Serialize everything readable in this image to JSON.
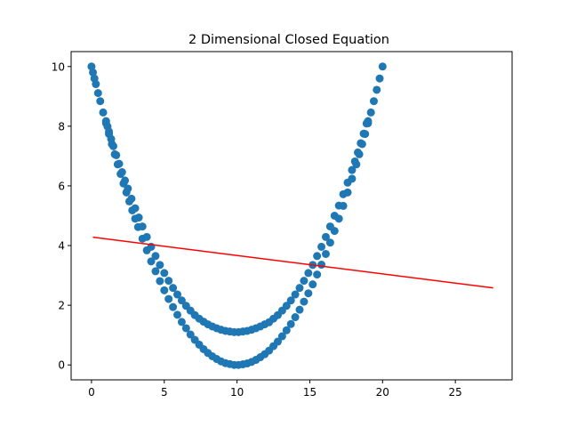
{
  "chart_data": {
    "type": "scatter",
    "title": "2 Dimensional Closed Equation",
    "xlabel": "",
    "ylabel": "",
    "xlim": [
      -1.4,
      28.9
    ],
    "ylim": [
      -0.5,
      10.5
    ],
    "x_ticks": [
      0,
      5,
      10,
      15,
      20,
      25
    ],
    "y_ticks": [
      0,
      2,
      4,
      6,
      8,
      10
    ],
    "grid": false,
    "legend": "none",
    "colors": {
      "scatter": "#1f77b4",
      "line": "#ff0000"
    },
    "series": [
      {
        "type": "scatter",
        "description_curve": "lower parabola y = (x-10)^2/10 for x in [0,20]",
        "x": [
          0.0,
          0.1,
          0.2,
          0.3,
          0.45,
          0.6,
          0.8,
          1.0,
          1.2,
          1.4,
          1.6,
          1.8,
          2.0,
          2.2,
          2.4,
          2.6,
          2.8,
          3.0,
          3.2,
          3.5,
          3.8,
          4.1,
          4.4,
          4.7,
          5.0,
          5.3,
          5.6,
          5.9,
          6.2,
          6.5,
          6.8,
          7.1,
          7.4,
          7.7,
          8.0,
          8.3,
          8.6,
          8.9,
          9.2,
          9.5,
          9.8,
          10.1,
          10.4,
          10.7,
          11.0,
          11.3,
          11.6,
          11.9,
          12.2,
          12.5,
          12.8,
          13.1,
          13.4,
          13.7,
          14.0,
          14.3,
          14.6,
          14.9,
          15.2,
          15.5,
          15.8,
          16.1,
          16.4,
          16.7,
          17.0,
          17.3,
          17.6,
          17.9,
          18.2,
          18.4,
          18.6,
          18.8,
          19.0,
          19.2,
          19.4,
          19.6,
          19.8,
          20.0
        ],
        "y": [
          10.0,
          9.8,
          9.6,
          9.41,
          9.11,
          8.84,
          8.46,
          8.1,
          7.74,
          7.4,
          7.06,
          6.72,
          6.4,
          6.08,
          5.78,
          5.48,
          5.18,
          4.9,
          4.62,
          4.23,
          3.84,
          3.47,
          3.14,
          2.81,
          2.5,
          2.21,
          1.94,
          1.68,
          1.44,
          1.23,
          1.02,
          0.84,
          0.68,
          0.53,
          0.4,
          0.29,
          0.2,
          0.12,
          0.06,
          0.03,
          0.0,
          0.0,
          0.02,
          0.05,
          0.1,
          0.17,
          0.26,
          0.36,
          0.48,
          0.63,
          0.78,
          0.96,
          1.16,
          1.37,
          1.6,
          1.85,
          2.12,
          2.4,
          2.7,
          3.03,
          3.36,
          3.72,
          4.1,
          4.49,
          4.9,
          5.33,
          5.78,
          6.24,
          6.72,
          7.06,
          7.4,
          7.74,
          8.1,
          8.46,
          8.84,
          9.22,
          9.6,
          10.0
        ]
      },
      {
        "type": "scatter",
        "description_curve": "upper parabola y = 1 + (x-10)^2/11.3 for x in [1,19]",
        "x": [
          1.0,
          1.1,
          1.2,
          1.35,
          1.5,
          1.7,
          1.9,
          2.1,
          2.3,
          2.5,
          2.75,
          3.0,
          3.25,
          3.5,
          3.8,
          4.1,
          4.4,
          4.7,
          5.0,
          5.3,
          5.6,
          5.9,
          6.2,
          6.5,
          6.8,
          7.1,
          7.4,
          7.7,
          8.0,
          8.3,
          8.6,
          8.9,
          9.2,
          9.5,
          9.8,
          10.1,
          10.4,
          10.7,
          11.0,
          11.3,
          11.6,
          11.9,
          12.2,
          12.5,
          12.8,
          13.1,
          13.4,
          13.7,
          14.0,
          14.3,
          14.6,
          14.9,
          15.2,
          15.5,
          15.8,
          16.1,
          16.4,
          16.7,
          17.0,
          17.3,
          17.6,
          17.9,
          18.1,
          18.3,
          18.5,
          18.7,
          18.9,
          19.0
        ],
        "y": [
          8.17,
          7.99,
          7.82,
          7.57,
          7.33,
          7.03,
          6.74,
          6.46,
          6.18,
          5.91,
          5.57,
          5.25,
          4.94,
          4.64,
          4.29,
          3.96,
          3.65,
          3.35,
          3.08,
          2.82,
          2.58,
          2.36,
          2.16,
          1.98,
          1.82,
          1.67,
          1.55,
          1.45,
          1.36,
          1.29,
          1.23,
          1.18,
          1.14,
          1.12,
          1.1,
          1.1,
          1.12,
          1.14,
          1.18,
          1.23,
          1.29,
          1.36,
          1.43,
          1.55,
          1.67,
          1.82,
          1.98,
          2.16,
          2.36,
          2.58,
          2.82,
          3.08,
          3.35,
          3.65,
          3.96,
          4.29,
          4.64,
          5.0,
          5.34,
          5.72,
          6.11,
          6.53,
          6.82,
          7.12,
          7.43,
          7.75,
          8.09,
          8.17
        ]
      },
      {
        "type": "line",
        "x": [
          0.1,
          27.6
        ],
        "y": [
          4.28,
          2.58
        ]
      }
    ]
  }
}
